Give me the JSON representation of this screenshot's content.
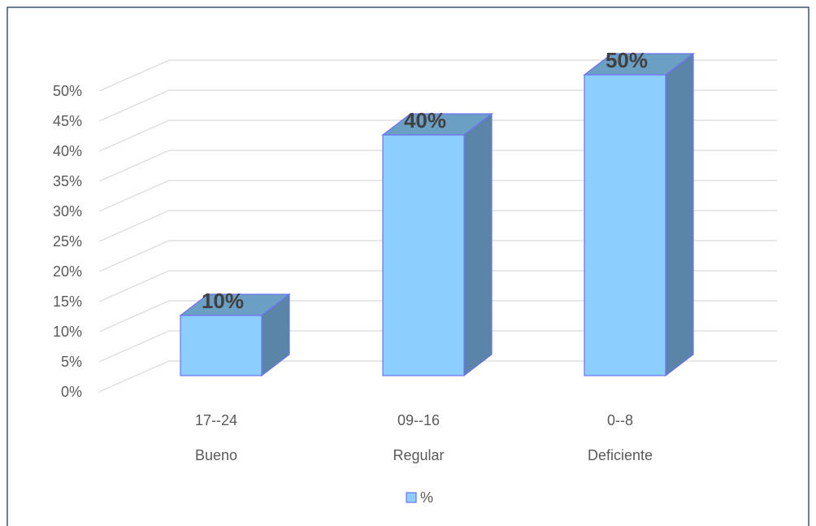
{
  "chart_data": {
    "type": "bar",
    "render": "3d-column",
    "categories": [
      [
        "17--24",
        "Bueno"
      ],
      [
        "09--16",
        "Regular"
      ],
      [
        "0--8",
        "Deficiente"
      ]
    ],
    "series": [
      {
        "name": "%",
        "values": [
          10,
          40,
          50
        ],
        "labels": [
          "10%",
          "40%",
          "50%"
        ]
      }
    ],
    "yticks": [
      "0%",
      "5%",
      "10%",
      "15%",
      "20%",
      "25%",
      "30%",
      "35%",
      "40%",
      "45%",
      "50%"
    ],
    "ylim": [
      0,
      50
    ],
    "title": "",
    "xlabel": "",
    "ylabel": "",
    "grid": true,
    "legend_position": "bottom",
    "colors": {
      "front": "#8ccffe",
      "top": "#6b9fc4",
      "side": "#5a85a8",
      "edge": "#6d72f2",
      "grid": "#d9d9d9",
      "frame": "#3b5573",
      "tick_text": "#595959",
      "label_text": "#404040"
    }
  }
}
